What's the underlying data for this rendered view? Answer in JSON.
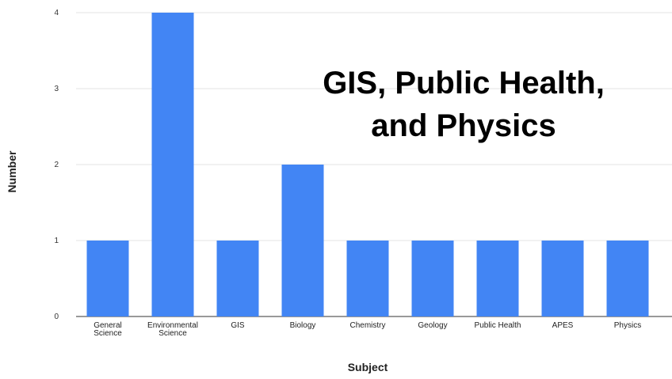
{
  "chart_data": {
    "type": "bar",
    "categories": [
      [
        "General",
        "Science"
      ],
      [
        "Environmental",
        "Science"
      ],
      [
        "GIS"
      ],
      [
        "Biology"
      ],
      [
        "Chemistry"
      ],
      [
        "Geology"
      ],
      [
        "Public Health"
      ],
      [
        "APES"
      ],
      [
        "Physics"
      ]
    ],
    "values": [
      1,
      4,
      1,
      2,
      1,
      1,
      1,
      1,
      1
    ],
    "xlabel": "Subject",
    "ylabel": "Number",
    "ylim": [
      0,
      4
    ],
    "yticks": [
      "0",
      "1",
      "2",
      "3",
      "4"
    ],
    "grid": true,
    "legend": "none",
    "bar_color": "#4285f4",
    "annotation": [
      "GIS, Public Health,",
      "and Physics"
    ]
  }
}
